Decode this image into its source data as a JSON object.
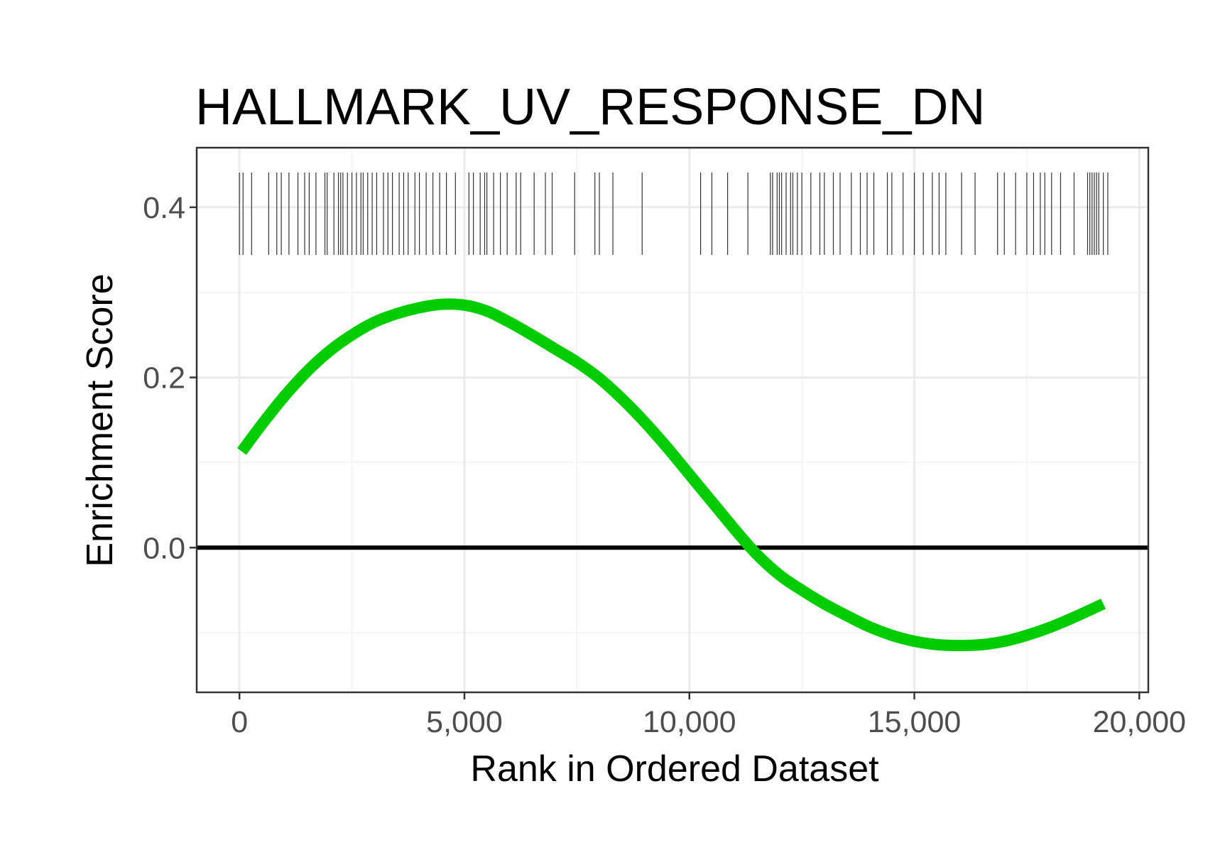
{
  "chart_data": {
    "type": "line",
    "title": "HALLMARK_UV_RESPONSE_DN",
    "xlabel": "Rank in Ordered Dataset",
    "ylabel": "Enrichment Score",
    "xlim": [
      -950,
      20200
    ],
    "ylim": [
      -0.17,
      0.47
    ],
    "xticks": [
      0,
      5000,
      10000,
      15000,
      20000
    ],
    "xtick_labels": [
      "0",
      "5,000",
      "10,000",
      "15,000",
      "20,000"
    ],
    "yticks": [
      0.0,
      0.2,
      0.4
    ],
    "ytick_labels": [
      "0.0",
      "0.2",
      "0.4"
    ],
    "grid": true,
    "hline": 0,
    "series": [
      {
        "color": "#00cc00",
        "x": [
          50,
          500,
          1000,
          1500,
          2000,
          2500,
          3000,
          3500,
          4000,
          4500,
          5000,
          5500,
          6000,
          6500,
          7000,
          7500,
          8000,
          8500,
          9000,
          9500,
          10000,
          10500,
          11000,
          11500,
          12000,
          12500,
          13000,
          13500,
          14000,
          14500,
          15000,
          15500,
          16000,
          16500,
          17000,
          17500,
          18000,
          18500,
          19200
        ],
        "y": [
          0.113,
          0.145,
          0.178,
          0.207,
          0.231,
          0.25,
          0.265,
          0.275,
          0.282,
          0.286,
          0.285,
          0.278,
          0.265,
          0.25,
          0.234,
          0.218,
          0.199,
          0.175,
          0.148,
          0.118,
          0.086,
          0.054,
          0.022,
          -0.008,
          -0.032,
          -0.05,
          -0.066,
          -0.08,
          -0.093,
          -0.103,
          -0.11,
          -0.114,
          -0.115,
          -0.114,
          -0.11,
          -0.103,
          -0.094,
          -0.083,
          -0.066
        ]
      }
    ],
    "gene_hits": [
      0,
      80,
      270,
      650,
      830,
      930,
      1100,
      1300,
      1450,
      1550,
      1700,
      1900,
      1950,
      2100,
      2200,
      2250,
      2300,
      2400,
      2500,
      2600,
      2700,
      2750,
      2850,
      2950,
      3050,
      3200,
      3300,
      3400,
      3550,
      3650,
      3750,
      3900,
      4000,
      4150,
      4300,
      4450,
      4600,
      4800,
      5100,
      5200,
      5350,
      5450,
      5500,
      5650,
      5800,
      5950,
      6150,
      6250,
      6550,
      6800,
      6950,
      7450,
      7900,
      8000,
      8300,
      8950,
      10250,
      10500,
      10850,
      11300,
      11800,
      11850,
      11950,
      12000,
      12050,
      12150,
      12250,
      12300,
      12400,
      12500,
      12700,
      12900,
      13000,
      13200,
      13350,
      13600,
      13800,
      13950,
      14100,
      14400,
      14500,
      14750,
      15000,
      15200,
      15400,
      15550,
      15700,
      16050,
      16350,
      16850,
      17000,
      17250,
      17500,
      17650,
      17800,
      17900,
      18050,
      18250,
      18550,
      18850,
      18900,
      18950,
      19000,
      19050,
      19100,
      19200,
      19300
    ]
  }
}
